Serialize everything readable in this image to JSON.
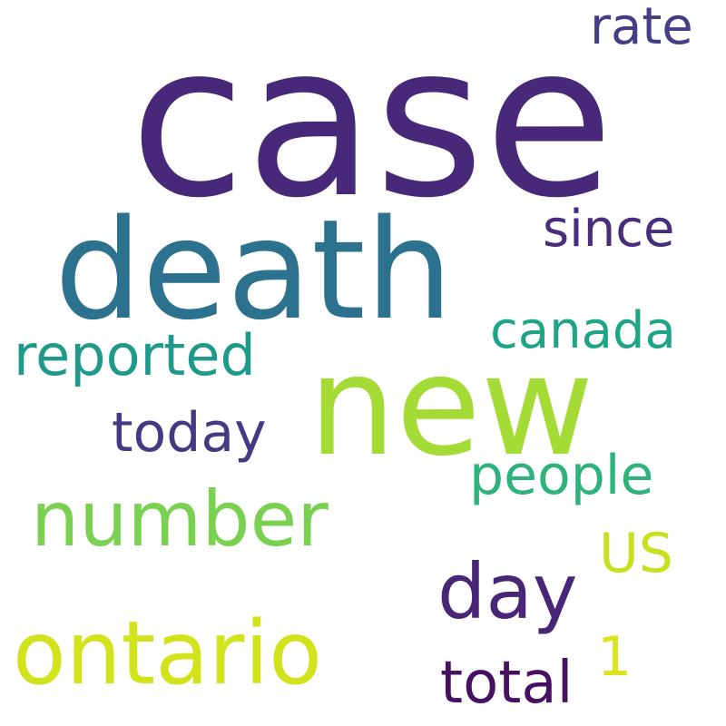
{
  "words": {
    "case": {
      "text": "case",
      "color": "#482878"
    },
    "death": {
      "text": "death",
      "color": "#2c728e"
    },
    "new": {
      "text": "new",
      "color": "#a5db36"
    },
    "rate": {
      "text": "rate",
      "color": "#433e85"
    },
    "since": {
      "text": "since",
      "color": "#472d7b"
    },
    "canada": {
      "text": "canada",
      "color": "#20a486"
    },
    "reported": {
      "text": "reported",
      "color": "#1f9a8a"
    },
    "today": {
      "text": "today",
      "color": "#443983"
    },
    "people": {
      "text": "people",
      "color": "#2eb37c"
    },
    "number": {
      "text": "number",
      "color": "#7ad151"
    },
    "us": {
      "text": "US",
      "color": "#c8e020"
    },
    "day": {
      "text": "day",
      "color": "#482576"
    },
    "ontario": {
      "text": "ontario",
      "color": "#d2e21b"
    },
    "one": {
      "text": "1",
      "color": "#dde318"
    },
    "total": {
      "text": "total",
      "color": "#471063"
    }
  }
}
